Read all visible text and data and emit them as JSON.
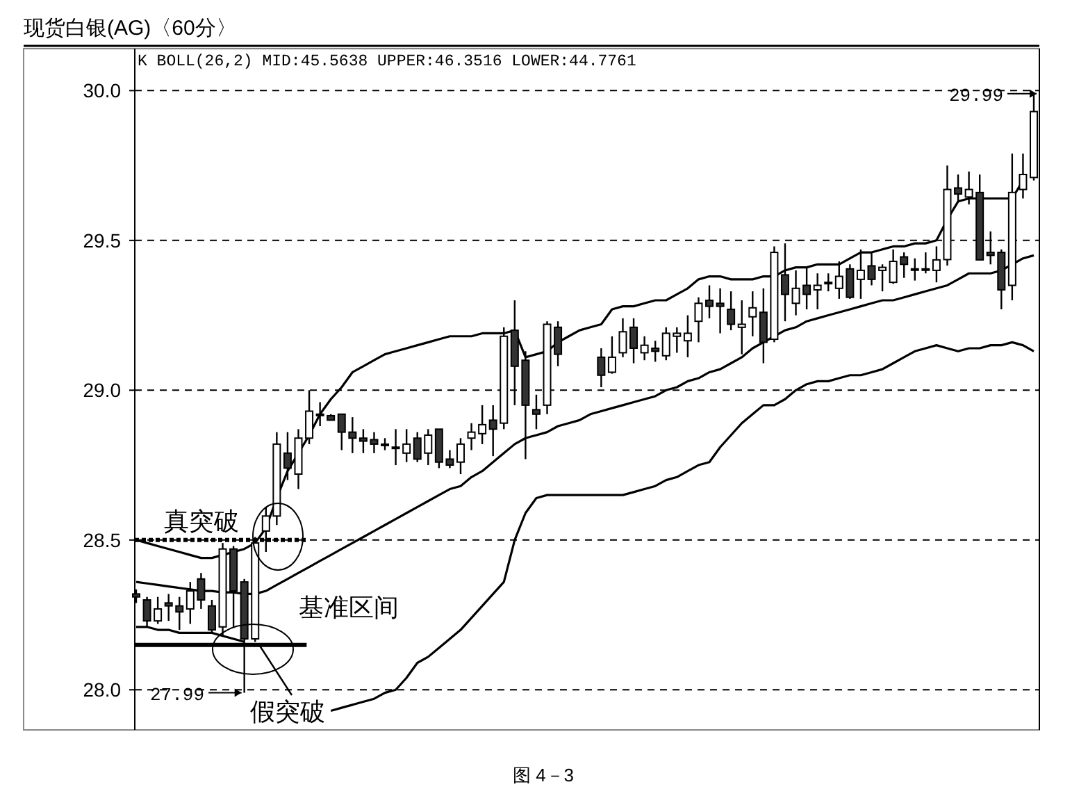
{
  "chart_data": {
    "type": "candlestick",
    "title": "现货白银(AG)〈60分〉",
    "subtitle": "K  BOLL(26,2) MID:45.5638 UPPER:46.3516 LOWER:44.7761",
    "categories": [
      null,
      null,
      null,
      null,
      null,
      null,
      null,
      null,
      null,
      null,
      null,
      null,
      null,
      null,
      null,
      null,
      null,
      null,
      null,
      null,
      null,
      null,
      null,
      null,
      null,
      null,
      null,
      null,
      null,
      null,
      null,
      null,
      null,
      null,
      null,
      null,
      null,
      null,
      null,
      null,
      null,
      null,
      null,
      null,
      null,
      null,
      null,
      null,
      null,
      null,
      null,
      null,
      null,
      null,
      null,
      null,
      null,
      null,
      null,
      null,
      null,
      null,
      null,
      null,
      null,
      null,
      null,
      null,
      null,
      null,
      null,
      null,
      null,
      null,
      null,
      null,
      null,
      null,
      null,
      null,
      null,
      null,
      null,
      null
    ],
    "ohlc": [
      [
        28.32,
        28.335,
        28.29,
        28.31
      ],
      [
        28.3,
        28.31,
        28.21,
        28.23
      ],
      [
        28.23,
        28.31,
        28.22,
        28.27
      ],
      [
        28.29,
        28.32,
        28.23,
        28.28
      ],
      [
        28.28,
        28.31,
        28.2,
        28.26
      ],
      [
        28.27,
        28.36,
        28.22,
        28.33
      ],
      [
        28.37,
        28.39,
        28.27,
        28.3
      ],
      [
        28.28,
        28.3,
        28.19,
        28.2
      ],
      [
        28.21,
        28.49,
        28.18,
        28.47
      ],
      [
        28.47,
        28.48,
        28.21,
        28.33
      ],
      [
        28.36,
        28.37,
        27.99,
        28.17
      ],
      [
        28.17,
        28.51,
        28.16,
        28.49
      ],
      [
        28.53,
        28.61,
        28.46,
        28.58
      ],
      [
        28.58,
        28.86,
        28.55,
        28.82
      ],
      [
        28.79,
        28.86,
        28.7,
        28.74
      ],
      [
        28.72,
        28.87,
        28.67,
        28.84
      ],
      [
        28.84,
        29.0,
        28.82,
        28.93
      ],
      [
        28.92,
        28.96,
        28.88,
        28.92
      ],
      [
        28.915,
        28.92,
        28.9,
        28.9
      ],
      [
        28.92,
        28.92,
        28.8,
        28.86
      ],
      [
        28.86,
        28.91,
        28.79,
        28.84
      ],
      [
        28.84,
        28.87,
        28.79,
        28.83
      ],
      [
        28.835,
        28.86,
        28.79,
        28.82
      ],
      [
        28.82,
        28.84,
        28.8,
        28.82
      ],
      [
        28.81,
        28.87,
        28.75,
        28.81
      ],
      [
        28.79,
        28.87,
        28.76,
        28.82
      ],
      [
        28.84,
        28.86,
        28.76,
        28.77
      ],
      [
        28.79,
        28.87,
        28.75,
        28.85
      ],
      [
        28.87,
        28.87,
        28.74,
        28.76
      ],
      [
        28.77,
        28.8,
        28.74,
        28.75
      ],
      [
        28.76,
        28.84,
        28.72,
        28.82
      ],
      [
        28.84,
        28.89,
        28.8,
        28.86
      ],
      [
        28.855,
        28.95,
        28.82,
        28.885
      ],
      [
        28.9,
        28.95,
        28.78,
        28.87
      ],
      [
        28.89,
        29.21,
        28.87,
        29.18
      ],
      [
        29.2,
        29.3,
        28.95,
        29.08
      ],
      [
        29.1,
        29.13,
        28.77,
        28.95
      ],
      [
        28.935,
        28.985,
        28.87,
        28.92
      ],
      [
        28.95,
        29.23,
        28.92,
        29.22
      ],
      [
        29.21,
        29.23,
        29.08,
        29.12
      ],
      null,
      null,
      null,
      [
        29.11,
        29.14,
        29.01,
        29.05
      ],
      [
        29.06,
        29.18,
        29.055,
        29.11
      ],
      [
        29.125,
        29.24,
        29.11,
        29.195
      ],
      [
        29.21,
        29.24,
        29.09,
        29.14
      ],
      [
        29.125,
        29.18,
        29.1,
        29.15
      ],
      [
        29.14,
        29.165,
        29.095,
        29.13
      ],
      [
        29.115,
        29.21,
        29.1,
        29.19
      ],
      [
        29.18,
        29.21,
        29.125,
        29.19
      ],
      [
        29.165,
        29.25,
        29.11,
        29.19
      ],
      [
        29.23,
        29.31,
        29.16,
        29.29
      ],
      [
        29.3,
        29.35,
        29.24,
        29.28
      ],
      [
        29.29,
        29.34,
        29.19,
        29.28
      ],
      [
        29.27,
        29.33,
        29.2,
        29.22
      ],
      [
        29.21,
        29.3,
        29.12,
        29.22
      ],
      [
        29.245,
        29.33,
        29.18,
        29.275
      ],
      [
        29.26,
        29.34,
        29.09,
        29.16
      ],
      [
        29.17,
        29.48,
        29.16,
        29.46
      ],
      [
        29.385,
        29.49,
        29.23,
        29.32
      ],
      [
        29.29,
        29.4,
        29.25,
        29.34
      ],
      [
        29.35,
        29.41,
        29.27,
        29.32
      ],
      [
        29.335,
        29.39,
        29.27,
        29.35
      ],
      [
        29.36,
        29.39,
        29.33,
        29.36
      ],
      [
        29.34,
        29.43,
        29.305,
        29.38
      ],
      [
        29.405,
        29.42,
        29.305,
        29.31
      ],
      [
        29.37,
        29.47,
        29.305,
        29.4
      ],
      [
        29.415,
        29.46,
        29.35,
        29.37
      ],
      [
        29.4,
        29.42,
        29.33,
        29.41
      ],
      [
        29.36,
        29.47,
        29.355,
        29.43
      ],
      [
        29.445,
        29.46,
        29.375,
        29.42
      ],
      [
        29.405,
        29.44,
        29.366,
        29.405
      ],
      [
        29.405,
        29.46,
        29.39,
        29.405
      ],
      [
        29.4,
        29.48,
        29.36,
        29.435
      ],
      [
        29.436,
        29.75,
        29.416,
        29.67
      ],
      [
        29.675,
        29.72,
        29.63,
        29.655
      ],
      [
        29.645,
        29.73,
        29.62,
        29.67
      ],
      [
        29.66,
        29.72,
        29.435,
        29.435
      ],
      [
        29.46,
        29.53,
        29.42,
        29.45
      ],
      [
        29.46,
        29.47,
        29.27,
        29.335
      ],
      [
        29.35,
        29.79,
        29.3,
        29.66
      ],
      [
        29.67,
        29.79,
        29.64,
        29.72
      ],
      [
        29.71,
        29.99,
        29.7,
        29.93
      ]
    ],
    "series": [
      {
        "type": "line",
        "color": "#000000",
        "values": [
          28.5,
          28.49,
          28.48,
          28.47,
          28.46,
          28.45,
          28.44,
          28.44,
          28.45,
          28.46,
          28.47,
          28.49,
          28.54,
          28.64,
          28.73,
          28.79,
          28.85,
          28.92,
          28.97,
          29.01,
          29.06,
          29.08,
          29.1,
          29.12,
          29.13,
          29.14,
          29.15,
          29.16,
          29.17,
          29.18,
          29.18,
          29.18,
          29.19,
          29.19,
          29.19,
          29.2,
          29.11,
          29.12,
          29.13,
          29.16,
          29.18,
          29.2,
          29.21,
          29.22,
          29.27,
          29.28,
          29.28,
          29.29,
          29.3,
          29.3,
          29.32,
          29.34,
          29.37,
          29.38,
          29.38,
          29.37,
          29.37,
          29.37,
          29.38,
          29.38,
          29.4,
          29.41,
          29.41,
          29.42,
          29.42,
          29.42,
          29.44,
          29.46,
          29.46,
          29.47,
          29.48,
          29.48,
          29.49,
          29.49,
          29.5,
          29.57,
          29.63,
          29.64,
          29.64,
          29.64,
          29.64,
          29.64,
          29.7,
          null
        ]
      },
      {
        "type": "line",
        "color": "#000000",
        "values": [
          28.36,
          28.355,
          28.35,
          28.345,
          28.34,
          28.335,
          28.33,
          28.33,
          28.325,
          28.325,
          28.32,
          28.32,
          28.33,
          28.35,
          28.37,
          28.39,
          28.41,
          28.43,
          28.45,
          28.47,
          28.49,
          28.51,
          28.53,
          28.55,
          28.57,
          28.59,
          28.61,
          28.63,
          28.65,
          28.67,
          28.68,
          28.71,
          28.73,
          28.76,
          28.79,
          28.82,
          28.84,
          28.85,
          28.86,
          28.88,
          28.89,
          28.9,
          28.92,
          28.93,
          28.94,
          28.95,
          28.96,
          28.97,
          28.98,
          29.0,
          29.01,
          29.03,
          29.04,
          29.06,
          29.07,
          29.09,
          29.11,
          29.14,
          29.16,
          29.18,
          29.2,
          29.21,
          29.23,
          29.24,
          29.25,
          29.26,
          29.27,
          29.28,
          29.29,
          29.3,
          29.3,
          29.31,
          29.32,
          29.33,
          29.34,
          29.35,
          29.37,
          29.39,
          29.39,
          29.39,
          29.4,
          29.42,
          29.44,
          29.45
        ]
      },
      {
        "type": "line",
        "color": "#000000",
        "values": [
          28.21,
          28.21,
          28.2,
          28.2,
          28.19,
          28.19,
          28.19,
          28.19,
          28.18,
          28.17,
          28.16,
          null,
          null,
          null,
          null,
          null,
          null,
          null,
          27.93,
          27.94,
          27.95,
          27.96,
          27.97,
          27.99,
          28.0,
          28.04,
          28.09,
          28.11,
          28.14,
          28.17,
          28.2,
          28.24,
          28.28,
          28.32,
          28.36,
          28.5,
          28.59,
          28.64,
          28.65,
          28.65,
          28.65,
          28.65,
          28.65,
          28.65,
          28.65,
          28.65,
          28.66,
          28.67,
          28.68,
          28.7,
          28.71,
          28.73,
          28.75,
          28.76,
          28.81,
          28.85,
          28.89,
          28.92,
          28.95,
          28.95,
          28.97,
          29.0,
          29.02,
          29.03,
          29.03,
          29.04,
          29.05,
          29.05,
          29.06,
          29.07,
          29.09,
          29.11,
          29.13,
          29.14,
          29.15,
          29.14,
          29.13,
          29.14,
          29.14,
          29.15,
          29.15,
          29.16,
          29.15,
          29.13
        ]
      }
    ],
    "ylim": [
      27.88,
      30.14
    ],
    "yticks": [
      {
        "value": 28,
        "label": "28.0"
      },
      28.5,
      {
        "value": 29,
        "label": "29.0"
      },
      29.5,
      {
        "value": 30,
        "label": "30.0"
      }
    ],
    "grid": "y",
    "tick_labels": "y",
    "ref_lines": [
      {
        "axis": "y",
        "value": 28.5,
        "line_style": "dashed",
        "color": "#000000"
      },
      {
        "axis": "y",
        "value": 28.15,
        "line_style": "solid",
        "color": "#000000"
      }
    ],
    "annotations": [
      "真突破",
      "基准区间",
      "假突破",
      "27.99",
      "29.99",
      "图 4－3"
    ]
  }
}
